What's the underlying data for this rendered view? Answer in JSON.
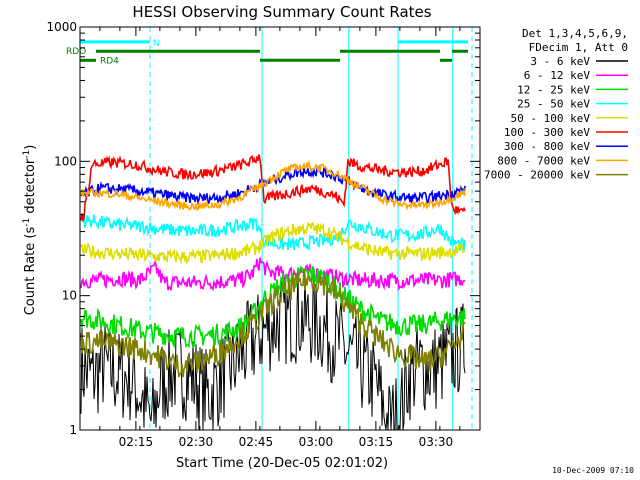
{
  "chart_data": {
    "type": "line",
    "title": "HESSI Observing Summary Count Rates",
    "xlabel": "Start Time (20-Dec-05 02:01:02)",
    "ylabel_main": "Count Rate (s",
    "ylabel_sup1": "-1",
    "ylabel_mid": " detector",
    "ylabel_sup2": "-1",
    "ylabel_end": ")",
    "y_scale": "log",
    "ylim": [
      1,
      1000
    ],
    "xlim_minutes": [
      0,
      100
    ],
    "x_ticks": [
      {
        "label": "02:15",
        "min": 13.97
      },
      {
        "label": "02:30",
        "min": 28.97
      },
      {
        "label": "02:45",
        "min": 43.97
      },
      {
        "label": "03:00",
        "min": 58.97
      },
      {
        "label": "03:15",
        "min": 73.97
      },
      {
        "label": "03:30",
        "min": 88.97
      }
    ],
    "y_ticks": [
      {
        "label": "1",
        "value": 1
      },
      {
        "label": "10",
        "value": 10
      },
      {
        "label": "100",
        "value": 100
      },
      {
        "label": "1000",
        "value": 1000
      }
    ],
    "legend_header": [
      "Det 1,3,4,5,6,9,",
      "FDecim 1, Att 0"
    ],
    "legend_placement": "right",
    "series": [
      {
        "name": "3 - 6 keV",
        "color": "#000000",
        "points": [
          [
            0,
            3
          ],
          [
            3,
            2.5
          ],
          [
            6,
            3
          ],
          [
            9,
            2.6
          ],
          [
            13,
            2.4
          ],
          [
            16,
            1.6
          ],
          [
            18,
            1.1
          ],
          [
            20,
            2.2
          ],
          [
            24,
            2.8
          ],
          [
            28,
            2.5
          ],
          [
            32,
            1.8
          ],
          [
            36,
            2.6
          ],
          [
            40,
            3.5
          ],
          [
            43,
            4.5
          ],
          [
            46,
            5.5
          ],
          [
            50,
            6.5
          ],
          [
            55,
            7
          ],
          [
            60,
            6
          ],
          [
            63,
            5
          ],
          [
            66,
            4
          ],
          [
            70,
            3
          ],
          [
            74,
            2.2
          ],
          [
            77,
            1.1
          ],
          [
            80,
            1.3
          ],
          [
            82,
            2.5
          ],
          [
            85,
            3
          ],
          [
            88,
            2.8
          ],
          [
            92,
            3.5
          ],
          [
            95,
            4
          ],
          [
            97,
            4.5
          ]
        ]
      },
      {
        "name": "6 - 12 keV",
        "color": "#ff00ff",
        "points": [
          [
            0,
            13
          ],
          [
            5,
            13
          ],
          [
            10,
            13.5
          ],
          [
            15,
            13
          ],
          [
            19,
            16
          ],
          [
            21,
            12.5
          ],
          [
            30,
            12.5
          ],
          [
            40,
            13
          ],
          [
            43,
            14.5
          ],
          [
            45,
            18
          ],
          [
            47,
            15
          ],
          [
            52,
            14.5
          ],
          [
            55,
            15
          ],
          [
            60,
            14.5
          ],
          [
            65,
            13.5
          ],
          [
            70,
            13
          ],
          [
            75,
            13
          ],
          [
            80,
            13
          ],
          [
            85,
            13
          ],
          [
            90,
            13
          ],
          [
            97,
            13.5
          ]
        ]
      },
      {
        "name": "12 - 25 keV",
        "color": "#00dd00",
        "points": [
          [
            0,
            7
          ],
          [
            5,
            6.5
          ],
          [
            10,
            6
          ],
          [
            15,
            5.5
          ],
          [
            20,
            5.2
          ],
          [
            25,
            5
          ],
          [
            30,
            5
          ],
          [
            35,
            5.2
          ],
          [
            40,
            5.8
          ],
          [
            43,
            7
          ],
          [
            46,
            9.5
          ],
          [
            50,
            12
          ],
          [
            55,
            14
          ],
          [
            58,
            14.5
          ],
          [
            62,
            13
          ],
          [
            66,
            10
          ],
          [
            70,
            8
          ],
          [
            75,
            6.5
          ],
          [
            80,
            6
          ],
          [
            85,
            6
          ],
          [
            90,
            6.5
          ],
          [
            97,
            7
          ]
        ]
      },
      {
        "name": "25 - 50 keV",
        "color": "#00ffff",
        "points": [
          [
            0,
            36
          ],
          [
            3,
            36
          ],
          [
            8,
            34
          ],
          [
            14,
            33
          ],
          [
            18,
            32
          ],
          [
            22,
            31
          ],
          [
            28,
            30
          ],
          [
            35,
            31
          ],
          [
            40,
            33
          ],
          [
            44,
            35
          ],
          [
            46,
            26
          ],
          [
            50,
            24
          ],
          [
            54,
            24
          ],
          [
            58,
            25
          ],
          [
            62,
            26
          ],
          [
            65,
            28
          ],
          [
            67,
            35
          ],
          [
            70,
            33
          ],
          [
            74,
            30
          ],
          [
            78,
            28
          ],
          [
            82,
            28
          ],
          [
            86,
            29
          ],
          [
            90,
            32
          ],
          [
            93,
            25
          ],
          [
            97,
            23
          ]
        ]
      },
      {
        "name": "50 - 100 keV",
        "color": "#dddd00",
        "points": [
          [
            0,
            22
          ],
          [
            5,
            21
          ],
          [
            10,
            20.5
          ],
          [
            15,
            20
          ],
          [
            20,
            19.5
          ],
          [
            25,
            19.5
          ],
          [
            30,
            19.5
          ],
          [
            35,
            20
          ],
          [
            40,
            21
          ],
          [
            44,
            22.5
          ],
          [
            47,
            26
          ],
          [
            50,
            29
          ],
          [
            54,
            31
          ],
          [
            58,
            32
          ],
          [
            62,
            30
          ],
          [
            66,
            26
          ],
          [
            70,
            23
          ],
          [
            75,
            21
          ],
          [
            80,
            20.5
          ],
          [
            85,
            20.5
          ],
          [
            90,
            21
          ],
          [
            97,
            22
          ]
        ]
      },
      {
        "name": "100 - 300 keV",
        "color": "#ff0000",
        "points": [
          [
            0,
            38
          ],
          [
            1,
            40
          ],
          [
            3,
            95
          ],
          [
            8,
            98
          ],
          [
            14,
            95
          ],
          [
            20,
            85
          ],
          [
            26,
            80
          ],
          [
            32,
            82
          ],
          [
            38,
            90
          ],
          [
            43,
            100
          ],
          [
            45,
            110
          ],
          [
            46,
            52
          ],
          [
            50,
            56
          ],
          [
            54,
            60
          ],
          [
            58,
            63
          ],
          [
            62,
            58
          ],
          [
            64,
            55
          ],
          [
            66,
            48
          ],
          [
            67,
            100
          ],
          [
            70,
            92
          ],
          [
            76,
            85
          ],
          [
            82,
            83
          ],
          [
            86,
            85
          ],
          [
            90,
            95
          ],
          [
            92,
            100
          ],
          [
            93,
            45
          ],
          [
            97,
            40
          ]
        ]
      },
      {
        "name": "300 - 800 keV",
        "color": "#0000ff",
        "points": [
          [
            0,
            55
          ],
          [
            5,
            63
          ],
          [
            10,
            62
          ],
          [
            15,
            60
          ],
          [
            20,
            57
          ],
          [
            25,
            54
          ],
          [
            30,
            53
          ],
          [
            35,
            54
          ],
          [
            40,
            58
          ],
          [
            44,
            65
          ],
          [
            48,
            72
          ],
          [
            52,
            80
          ],
          [
            56,
            85
          ],
          [
            60,
            84
          ],
          [
            64,
            78
          ],
          [
            68,
            68
          ],
          [
            72,
            60
          ],
          [
            76,
            56
          ],
          [
            80,
            54
          ],
          [
            84,
            53
          ],
          [
            88,
            54
          ],
          [
            92,
            57
          ],
          [
            97,
            62
          ]
        ]
      },
      {
        "name": "800 - 7000 keV",
        "color": "#ffa500",
        "points": [
          [
            0,
            58
          ],
          [
            5,
            58
          ],
          [
            10,
            57
          ],
          [
            15,
            53
          ],
          [
            20,
            50
          ],
          [
            25,
            47
          ],
          [
            30,
            46
          ],
          [
            35,
            48
          ],
          [
            40,
            54
          ],
          [
            44,
            63
          ],
          [
            48,
            75
          ],
          [
            52,
            87
          ],
          [
            56,
            92
          ],
          [
            60,
            90
          ],
          [
            64,
            82
          ],
          [
            68,
            70
          ],
          [
            72,
            60
          ],
          [
            76,
            52
          ],
          [
            80,
            48
          ],
          [
            84,
            47
          ],
          [
            88,
            48
          ],
          [
            92,
            52
          ],
          [
            97,
            60
          ]
        ]
      },
      {
        "name": "7000 - 20000 keV",
        "color": "#808000",
        "points": [
          [
            0,
            4.5
          ],
          [
            5,
            4.5
          ],
          [
            10,
            4.3
          ],
          [
            15,
            4
          ],
          [
            20,
            3.5
          ],
          [
            25,
            3
          ],
          [
            30,
            3.2
          ],
          [
            35,
            3.8
          ],
          [
            40,
            5
          ],
          [
            44,
            6.5
          ],
          [
            48,
            9
          ],
          [
            52,
            11
          ],
          [
            56,
            13
          ],
          [
            59,
            13
          ],
          [
            62,
            12
          ],
          [
            66,
            9
          ],
          [
            70,
            6.5
          ],
          [
            74,
            5
          ],
          [
            78,
            4
          ],
          [
            82,
            3.5
          ],
          [
            86,
            3.2
          ],
          [
            90,
            3.5
          ],
          [
            94,
            4.5
          ],
          [
            97,
            5.5
          ]
        ]
      }
    ],
    "lines": [
      {
        "label": "N",
        "color": "#00ffff",
        "y": 775,
        "segments": [
          [
            0,
            17.5
          ],
          [
            79.5,
            97
          ]
        ],
        "label_at": 18.2
      },
      {
        "label": "RDO",
        "color": "#008000",
        "y": 660,
        "segments": [
          [
            4,
            45
          ],
          [
            65,
            90
          ],
          [
            93,
            97
          ]
        ]
      },
      {
        "label": "RD4",
        "color": "#008000",
        "y": 565,
        "segments": [
          [
            0,
            4
          ],
          [
            45,
            65
          ],
          [
            90,
            93
          ]
        ]
      }
    ],
    "markers": [
      {
        "min": 0,
        "style": "solid",
        "color": "#00ffff"
      },
      {
        "min": 17.5,
        "style": "dashed",
        "color": "#00ffff"
      },
      {
        "min": 45.5,
        "style": "solid",
        "color": "#00ffff"
      },
      {
        "min": 67.2,
        "style": "solid",
        "color": "#00ffff"
      },
      {
        "min": 79.5,
        "style": "solid",
        "color": "#00ffff"
      },
      {
        "min": 93.2,
        "style": "solid",
        "color": "#00ffff"
      },
      {
        "min": 98,
        "style": "dashed",
        "color": "#00ffff"
      }
    ],
    "timestamp": "10-Dec-2009 07:10"
  }
}
